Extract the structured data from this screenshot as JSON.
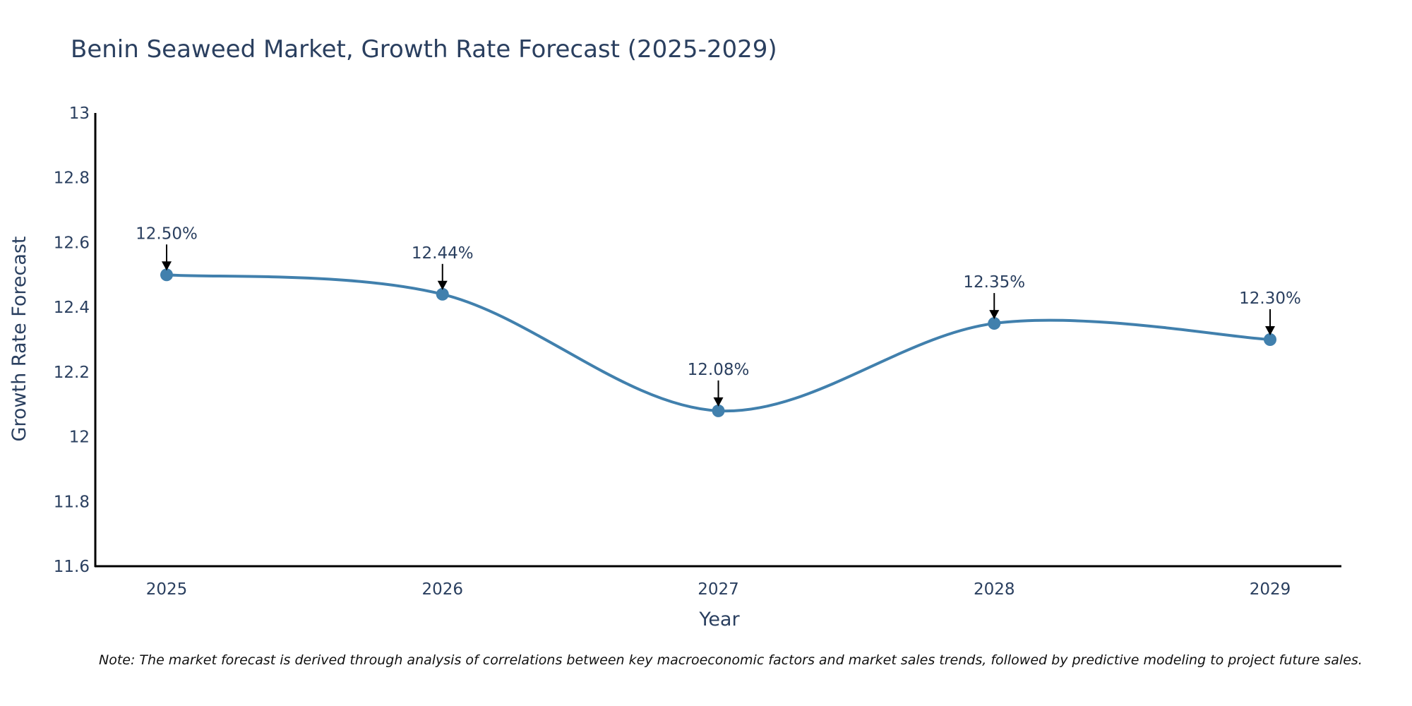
{
  "colors": {
    "line": "#4180ad",
    "marker": "#4180ad",
    "axis": "#000000",
    "text": "#2a3f5f",
    "arrow": "#000000"
  },
  "chart_data": {
    "type": "line",
    "title": "Benin Seaweed Market, Growth Rate Forecast (2025-2029)",
    "xlabel": "Year",
    "ylabel": "Growth Rate Forecast",
    "categories": [
      "2025",
      "2026",
      "2027",
      "2028",
      "2029"
    ],
    "series": [
      {
        "name": "Growth Rate Forecast",
        "values": [
          12.5,
          12.44,
          12.08,
          12.35,
          12.3
        ]
      }
    ],
    "data_labels": [
      "12.50%",
      "12.44%",
      "12.08%",
      "12.35%",
      "12.30%"
    ],
    "ylim": [
      11.6,
      13.0
    ],
    "yticks": [
      11.6,
      11.8,
      12.0,
      12.2,
      12.4,
      12.6,
      12.8,
      13.0
    ],
    "ytick_labels": [
      "11.6",
      "11.8",
      "12",
      "12.2",
      "12.4",
      "12.6",
      "12.8",
      "13"
    ],
    "line_shape": "spline",
    "grid": false,
    "note": "Note: The market forecast is derived through analysis of correlations between key macroeconomic factors and market sales trends, followed by predictive modeling to project future sales."
  }
}
